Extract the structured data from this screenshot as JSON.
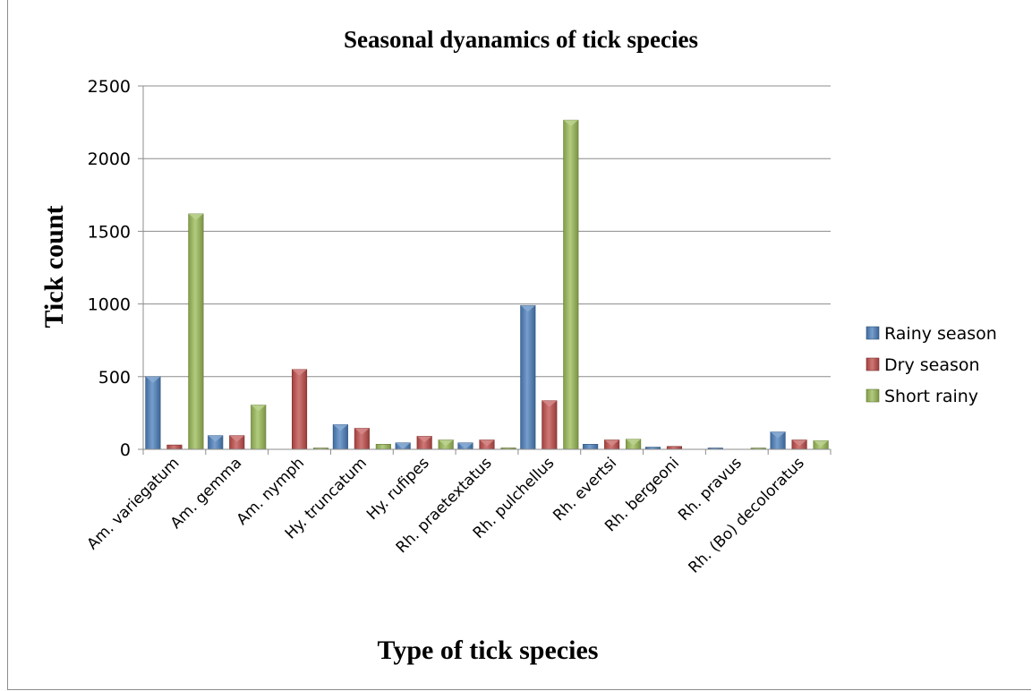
{
  "chart_data": {
    "type": "bar",
    "title": "Seasonal dyanamics of tick species",
    "xlabel": "Type of tick species",
    "ylabel": "Tick count",
    "ylim": [
      0,
      2500
    ],
    "yticks": [
      0,
      500,
      1000,
      1500,
      2000,
      2500
    ],
    "grid": true,
    "legend_position": "right",
    "categories": [
      "Am. variegatum",
      "Am. gemma",
      "Am. nymph",
      "Hy. truncatum",
      "Hy. rufipes",
      "Rh. praetextatus",
      "Rh. pulchellus",
      "Rh. evertsi",
      "Rh. bergeoni",
      "Rh. pravus",
      "Rh. (Bo) decoloratus"
    ],
    "series": [
      {
        "name": "Rainy season",
        "color": "#4a7ebb",
        "values": [
          500,
          95,
          0,
          170,
          45,
          45,
          990,
          35,
          15,
          3,
          120
        ]
      },
      {
        "name": "Dry season",
        "color": "#be4b48",
        "values": [
          30,
          95,
          550,
          145,
          90,
          65,
          335,
          65,
          20,
          0,
          65
        ]
      },
      {
        "name": "Short rainy",
        "color": "#98b954",
        "values": [
          1620,
          305,
          5,
          35,
          65,
          10,
          2265,
          70,
          0,
          3,
          60
        ]
      }
    ]
  }
}
